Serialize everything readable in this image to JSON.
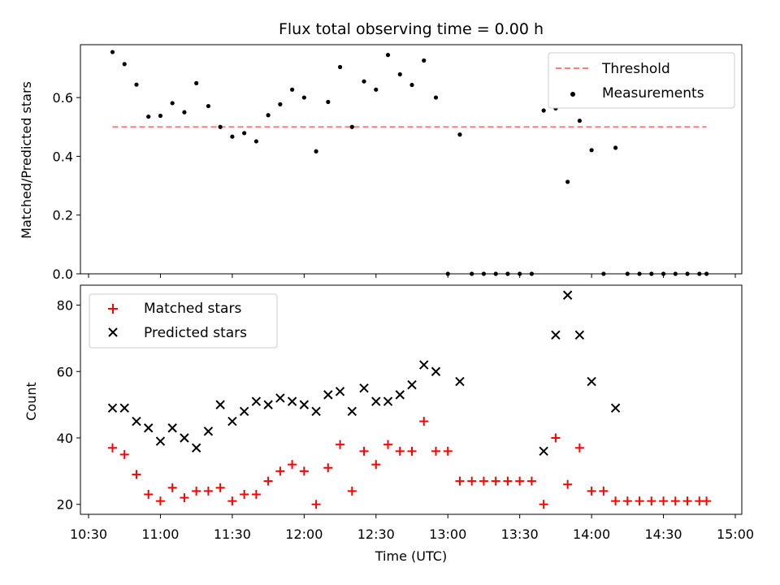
{
  "chart_data": [
    {
      "type": "line+scatter",
      "title": "Flux total observing time = 0.00 h",
      "xlabel": "",
      "ylabel": "Matched/Predicted stars",
      "xlim": [
        "10:30",
        "15:00"
      ],
      "ylim": [
        0,
        0.78
      ],
      "yticks": [
        "0.0",
        "0.2",
        "0.4",
        "0.6"
      ],
      "legend_position": "top-right",
      "threshold": {
        "name": "Threshold",
        "value": 0.5,
        "x_range": [
          "10:40",
          "14:48"
        ],
        "color": "#ff7f7f",
        "dash": true
      },
      "series": [
        {
          "name": "Measurements",
          "marker": "dot",
          "color": "#000000",
          "x": [
            "10:40",
            "10:45",
            "10:50",
            "10:55",
            "11:00",
            "11:05",
            "11:10",
            "11:15",
            "11:20",
            "11:25",
            "11:30",
            "11:35",
            "11:40",
            "11:45",
            "11:50",
            "11:55",
            "12:00",
            "12:05",
            "12:10",
            "12:15",
            "12:20",
            "12:25",
            "12:30",
            "12:35",
            "12:40",
            "12:45",
            "12:50",
            "12:55",
            "13:00",
            "13:05",
            "13:10",
            "13:15",
            "13:20",
            "13:25",
            "13:30",
            "13:35",
            "13:40",
            "13:45",
            "13:50",
            "13:55",
            "14:00",
            "14:05",
            "14:10",
            "14:15",
            "14:20",
            "14:25",
            "14:30",
            "14:35",
            "14:40",
            "14:45",
            "14:48"
          ],
          "values": [
            0.755,
            0.714,
            0.644,
            0.535,
            0.538,
            0.581,
            0.55,
            0.649,
            0.571,
            0.5,
            0.467,
            0.479,
            0.451,
            0.54,
            0.577,
            0.627,
            0.6,
            0.417,
            0.585,
            0.704,
            0.5,
            0.655,
            0.627,
            0.745,
            0.679,
            0.643,
            0.726,
            0.6,
            0,
            0.474,
            0,
            0,
            0,
            0,
            0,
            0,
            0.556,
            0.563,
            0.313,
            0.521,
            0.421,
            0,
            0.429,
            0,
            0,
            0,
            0,
            0,
            0,
            0,
            0
          ]
        }
      ]
    },
    {
      "type": "scatter",
      "title": "",
      "xlabel": "Time (UTC)",
      "ylabel": "Count",
      "xlim": [
        "10:30",
        "15:00"
      ],
      "ylim": [
        17,
        86
      ],
      "xticks": [
        "10:30",
        "11:00",
        "11:30",
        "12:00",
        "12:30",
        "13:00",
        "13:30",
        "14:00",
        "14:30",
        "15:00"
      ],
      "yticks": [
        "20",
        "40",
        "60",
        "80"
      ],
      "legend_position": "top-left",
      "series": [
        {
          "name": "Matched stars",
          "marker": "plus",
          "color": "#ff0000",
          "x": [
            "10:40",
            "10:45",
            "10:50",
            "10:55",
            "11:00",
            "11:05",
            "11:10",
            "11:15",
            "11:20",
            "11:25",
            "11:30",
            "11:35",
            "11:40",
            "11:45",
            "11:50",
            "11:55",
            "12:00",
            "12:05",
            "12:10",
            "12:15",
            "12:20",
            "12:25",
            "12:30",
            "12:35",
            "12:40",
            "12:45",
            "12:50",
            "12:55",
            "13:00",
            "13:05",
            "13:10",
            "13:15",
            "13:20",
            "13:25",
            "13:30",
            "13:35",
            "13:40",
            "13:45",
            "13:50",
            "13:55",
            "14:00",
            "14:05",
            "14:10",
            "14:15",
            "14:20",
            "14:25",
            "14:30",
            "14:35",
            "14:40",
            "14:45",
            "14:48"
          ],
          "values": [
            37,
            35,
            29,
            23,
            21,
            25,
            22,
            24,
            24,
            25,
            21,
            23,
            23,
            27,
            30,
            32,
            30,
            20,
            31,
            38,
            24,
            36,
            32,
            38,
            36,
            36,
            45,
            36,
            36,
            27,
            27,
            27,
            27,
            27,
            27,
            27,
            20,
            40,
            26,
            37,
            24,
            24,
            21,
            21,
            21,
            21,
            21,
            21,
            21,
            21,
            21
          ]
        },
        {
          "name": "Predicted stars",
          "marker": "x",
          "color": "#000000",
          "x": [
            "10:40",
            "10:45",
            "10:50",
            "10:55",
            "11:00",
            "11:05",
            "11:10",
            "11:15",
            "11:20",
            "11:25",
            "11:30",
            "11:35",
            "11:40",
            "11:45",
            "11:50",
            "11:55",
            "12:00",
            "12:05",
            "12:10",
            "12:15",
            "12:20",
            "12:25",
            "12:30",
            "12:35",
            "12:40",
            "12:45",
            "12:50",
            "12:55",
            "13:05",
            "13:40",
            "13:45",
            "13:50",
            "13:55",
            "14:00",
            "14:10"
          ],
          "values": [
            49,
            49,
            45,
            43,
            39,
            43,
            40,
            37,
            42,
            50,
            45,
            48,
            51,
            50,
            52,
            51,
            50,
            48,
            53,
            54,
            48,
            55,
            51,
            51,
            53,
            56,
            62,
            60,
            57,
            36,
            71,
            83,
            71,
            57,
            49
          ]
        }
      ]
    }
  ]
}
